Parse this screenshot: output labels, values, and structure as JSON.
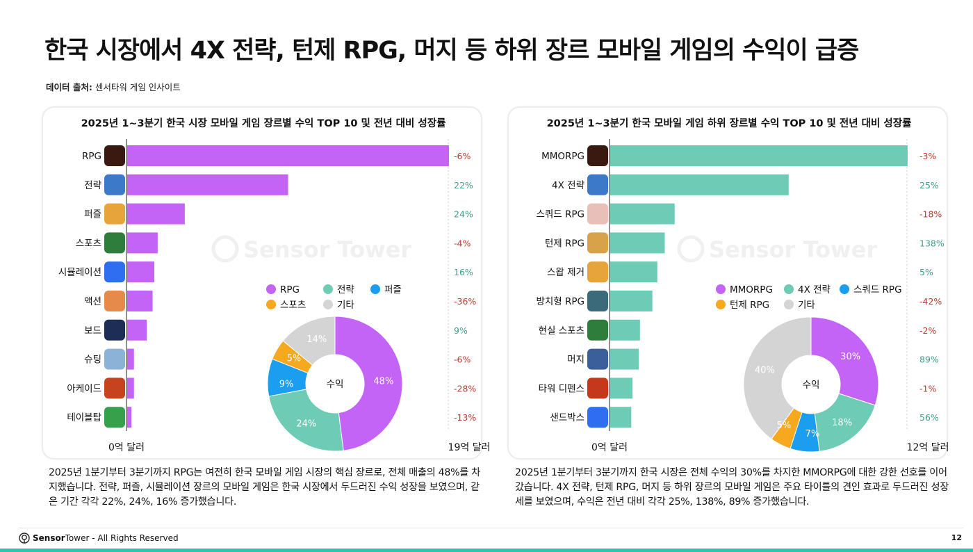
{
  "title": "한국 시장에서 4X 전략, 턴제 RPG, 머지 등 하위 장르 모바일 게임의 수익이 급증",
  "source": {
    "label": "데이터 출처:",
    "value": "센서타워 게임 인사이트"
  },
  "colors": {
    "purple": "#c364f6",
    "teal": "#6dcbb6",
    "blue": "#1b9df0",
    "orange": "#f6a91f",
    "gray": "#d4d4d4",
    "negative": "#c0392b",
    "positive": "#3f9e86"
  },
  "chart_data": [
    {
      "type": "bar",
      "title": "2025년 1~3분기 한국 시장 모바일 게임 장르별 수익 TOP 10 및 전년 대비 성장률",
      "unit": "억 달러",
      "xlim": [
        0,
        19
      ],
      "axis_labels": [
        "0억 달러",
        "19억 달러"
      ],
      "bar_color": "#c364f6",
      "categories": [
        "RPG",
        "전략",
        "퍼즐",
        "스포츠",
        "시뮬레이션",
        "액션",
        "보드",
        "슈팅",
        "아케이드",
        "테이블탑"
      ],
      "values": [
        19,
        9.5,
        3.4,
        1.8,
        1.6,
        1.5,
        1.15,
        0.4,
        0.4,
        0.25
      ],
      "growth": [
        "-6%",
        "22%",
        "24%",
        "-4%",
        "16%",
        "-36%",
        "9%",
        "-6%",
        "-28%",
        "-13%"
      ],
      "icons": [
        {
          "name": "lineage-m-app-icon",
          "color": "#3a1a10"
        },
        {
          "name": "strategy-game-app-icon",
          "color": "#3d79c9"
        },
        {
          "name": "puzzle-game-app-icon",
          "color": "#e7a43a"
        },
        {
          "name": "football-game-app-icon",
          "color": "#2f7d3a"
        },
        {
          "name": "roblox-app-icon",
          "color": "#2f6ef0"
        },
        {
          "name": "action-game-app-icon",
          "color": "#e58a4a"
        },
        {
          "name": "poker-game-app-icon",
          "color": "#1d2d55"
        },
        {
          "name": "pubg-app-icon",
          "color": "#8db2d8"
        },
        {
          "name": "cookie-run-app-icon",
          "color": "#c7431f"
        },
        {
          "name": "tabletop-game-app-icon",
          "color": "#36a04a"
        }
      ],
      "donut": {
        "center_label": "수익",
        "slices": [
          {
            "name": "RPG",
            "value": 48,
            "label": "48%",
            "color": "#c364f6"
          },
          {
            "name": "전략",
            "value": 24,
            "label": "24%",
            "color": "#6dcbb6"
          },
          {
            "name": "퍼즐",
            "value": 9,
            "label": "9%",
            "color": "#1b9df0"
          },
          {
            "name": "스포츠",
            "value": 5,
            "label": "5%",
            "color": "#f6a91f"
          },
          {
            "name": "기타",
            "value": 14,
            "label": "14%",
            "color": "#d4d4d4"
          }
        ]
      }
    },
    {
      "type": "bar",
      "title": "2025년 1~3분기 한국 모바일 게임 하위 장르별 수익 TOP 10 및 전년 대비 성장률",
      "unit": "억 달러",
      "xlim": [
        0,
        12
      ],
      "axis_labels": [
        "0억 달러",
        "12억 달러"
      ],
      "bar_color": "#6dcbb6",
      "categories": [
        "MMORPG",
        "4X 전략",
        "스쿼드 RPG",
        "턴제 RPG",
        "스왑 제거",
        "방치형 RPG",
        "현실 스포츠",
        "머지",
        "타워 디펜스",
        "샌드박스"
      ],
      "values": [
        12,
        7.2,
        2.6,
        2.2,
        1.9,
        1.7,
        1.2,
        1.15,
        0.9,
        0.85
      ],
      "growth": [
        "-3%",
        "25%",
        "-18%",
        "138%",
        "5%",
        "-42%",
        "-2%",
        "89%",
        "-1%",
        "56%"
      ],
      "icons": [
        {
          "name": "lineage-m-app-icon",
          "color": "#3a1a10"
        },
        {
          "name": "strategy-game-app-icon",
          "color": "#3d79c9"
        },
        {
          "name": "anime-rpg-app-icon",
          "color": "#e8c0b8"
        },
        {
          "name": "turn-based-rpg-app-icon",
          "color": "#d7a24a"
        },
        {
          "name": "puzzle-game-app-icon",
          "color": "#e7a43a"
        },
        {
          "name": "idle-rpg-app-icon",
          "color": "#3b6b7a"
        },
        {
          "name": "football-game-app-icon",
          "color": "#2f7d3a"
        },
        {
          "name": "merge-game-app-icon",
          "color": "#3a5f9a"
        },
        {
          "name": "tower-defense-app-icon",
          "color": "#c5381c"
        },
        {
          "name": "roblox-app-icon",
          "color": "#2f6ef0"
        }
      ],
      "donut": {
        "center_label": "수익",
        "slices": [
          {
            "name": "MMORPG",
            "value": 30,
            "label": "30%",
            "color": "#c364f6"
          },
          {
            "name": "4X 전략",
            "value": 18,
            "label": "18%",
            "color": "#6dcbb6"
          },
          {
            "name": "스쿼드 RPG",
            "value": 7,
            "label": "7%",
            "color": "#1b9df0"
          },
          {
            "name": "턴제 RPG",
            "value": 5,
            "label": "5%",
            "color": "#f6a91f"
          },
          {
            "name": "기타",
            "value": 40,
            "label": "40%",
            "color": "#d4d4d4"
          }
        ]
      }
    }
  ],
  "descriptions": [
    "2025년 1분기부터 3분기까지 RPG는 여전히 한국 모바일 게임 시장의 핵심 장르로, 전체 매출의 48%를 차지했습니다. 전략, 퍼즐, 시뮬레이션 장르의 모바일 게임은 한국 시장에서 두드러진 수익 성장을 보였으며, 같은 기간 각각 22%, 24%, 16% 증가했습니다.",
    "2025년 1분기부터 3분기까지 한국 시장은 전체 수익의 30%를 차지한 MMORPG에 대한 강한 선호를 이어갔습니다. 4X 전략, 턴제 RPG, 머지 등 하위 장르의 모바일 게임은 주요 타이틀의 견인 효과로 두드러진 성장세를 보였으며, 수익은 전년 대비 각각 25%, 138%, 89% 증가했습니다."
  ],
  "watermark": "Sensor Tower",
  "footer": {
    "brand_bold": "Sensor",
    "brand_rest": "Tower",
    "rights": " - All Rights Reserved",
    "page": "12"
  }
}
